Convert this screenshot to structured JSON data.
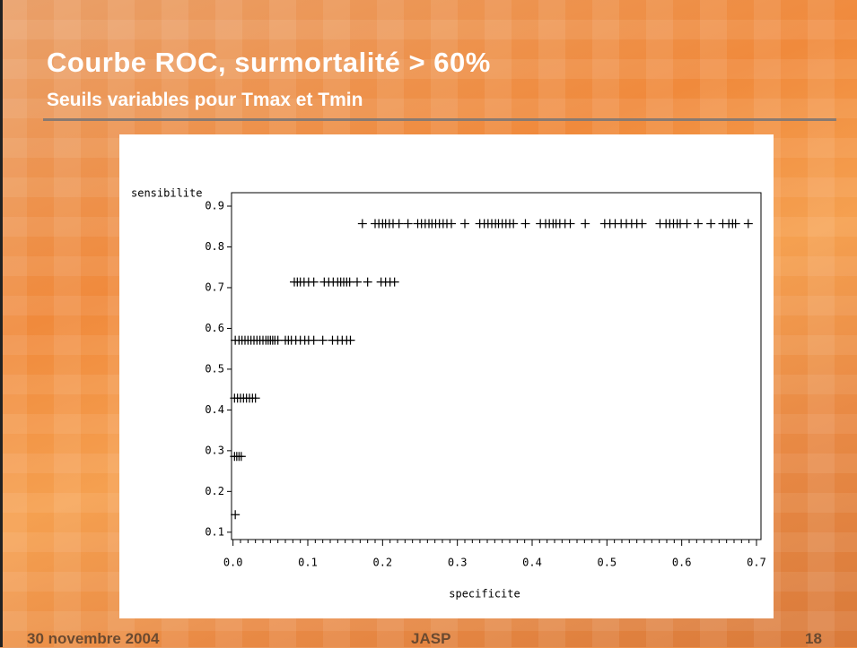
{
  "slide": {
    "title": "Courbe ROC, surmortalité > 60%",
    "subtitle": "Seuils variables pour Tmax et Tmin",
    "footer": {
      "date": "30 novembre 2004",
      "center": "JASP",
      "page": "18"
    }
  },
  "chart_data": {
    "type": "scatter",
    "marker": "+",
    "color": "#000000",
    "x_label": "specificite",
    "y_label": "sensibilite",
    "xlim": [
      -0.002,
      0.706
    ],
    "ylim": [
      0.082,
      0.933
    ],
    "xticks": [
      {
        "value": 0,
        "label": "0.0"
      },
      0.1,
      0.2,
      0.3,
      0.4,
      0.5,
      0.6,
      0.7
    ],
    "yticks": [
      0.1,
      0.2,
      0.3,
      0.4,
      0.5,
      0.6,
      0.7,
      0.8,
      0.9
    ],
    "series": [
      {
        "x": [
          0.003
        ],
        "values": [
          0.143
        ]
      },
      {
        "x": [
          0.002,
          0.005,
          0.008,
          0.011
        ],
        "values": [
          0.286,
          0.286,
          0.286,
          0.286
        ]
      },
      {
        "x": [
          0.002,
          0.006,
          0.01,
          0.014,
          0.018,
          0.022,
          0.026,
          0.03
        ],
        "values": [
          0.429,
          0.429,
          0.429,
          0.429,
          0.429,
          0.429,
          0.429,
          0.429
        ]
      },
      {
        "x": [
          0.003,
          0.008,
          0.012,
          0.016,
          0.02,
          0.024,
          0.028,
          0.032,
          0.036,
          0.04,
          0.044,
          0.047,
          0.05,
          0.053,
          0.056,
          0.06,
          0.07,
          0.074,
          0.078,
          0.084,
          0.09,
          0.096,
          0.101,
          0.108,
          0.12,
          0.133,
          0.14,
          0.146,
          0.152,
          0.157
        ],
        "values": [
          0.571,
          0.571,
          0.571,
          0.571,
          0.571,
          0.571,
          0.571,
          0.571,
          0.571,
          0.571,
          0.571,
          0.571,
          0.571,
          0.571,
          0.571,
          0.571,
          0.571,
          0.571,
          0.571,
          0.571,
          0.571,
          0.571,
          0.571,
          0.571,
          0.571,
          0.571,
          0.571,
          0.571,
          0.571,
          0.571
        ]
      },
      {
        "x": [
          0.082,
          0.086,
          0.09,
          0.095,
          0.101,
          0.108,
          0.122,
          0.128,
          0.134,
          0.14,
          0.144,
          0.148,
          0.152,
          0.156,
          0.166,
          0.18,
          0.198,
          0.204,
          0.21,
          0.216
        ],
        "values": [
          0.714,
          0.714,
          0.714,
          0.714,
          0.714,
          0.714,
          0.714,
          0.714,
          0.714,
          0.714,
          0.714,
          0.714,
          0.714,
          0.714,
          0.714,
          0.714,
          0.714,
          0.714,
          0.714,
          0.714
        ]
      },
      {
        "x": [
          0.173,
          0.19,
          0.195,
          0.2,
          0.204,
          0.209,
          0.214,
          0.222,
          0.234,
          0.247,
          0.252,
          0.257,
          0.262,
          0.266,
          0.271,
          0.276,
          0.281,
          0.286,
          0.292,
          0.31,
          0.33,
          0.336,
          0.341,
          0.346,
          0.351,
          0.355,
          0.36,
          0.365,
          0.37,
          0.375,
          0.391,
          0.411,
          0.418,
          0.423,
          0.428,
          0.432,
          0.437,
          0.444,
          0.451,
          0.471,
          0.497,
          0.504,
          0.511,
          0.519,
          0.526,
          0.533,
          0.54,
          0.547,
          0.571,
          0.579,
          0.584,
          0.589,
          0.594,
          0.598,
          0.607,
          0.622,
          0.639,
          0.655,
          0.663,
          0.668,
          0.672,
          0.689
        ],
        "values": [
          0.857,
          0.857,
          0.857,
          0.857,
          0.857,
          0.857,
          0.857,
          0.857,
          0.857,
          0.857,
          0.857,
          0.857,
          0.857,
          0.857,
          0.857,
          0.857,
          0.857,
          0.857,
          0.857,
          0.857,
          0.857,
          0.857,
          0.857,
          0.857,
          0.857,
          0.857,
          0.857,
          0.857,
          0.857,
          0.857,
          0.857,
          0.857,
          0.857,
          0.857,
          0.857,
          0.857,
          0.857,
          0.857,
          0.857,
          0.857,
          0.857,
          0.857,
          0.857,
          0.857,
          0.857,
          0.857,
          0.857,
          0.857,
          0.857,
          0.857,
          0.857,
          0.857,
          0.857,
          0.857,
          0.857,
          0.857,
          0.857,
          0.857,
          0.857,
          0.857,
          0.857,
          0.857
        ]
      }
    ]
  }
}
